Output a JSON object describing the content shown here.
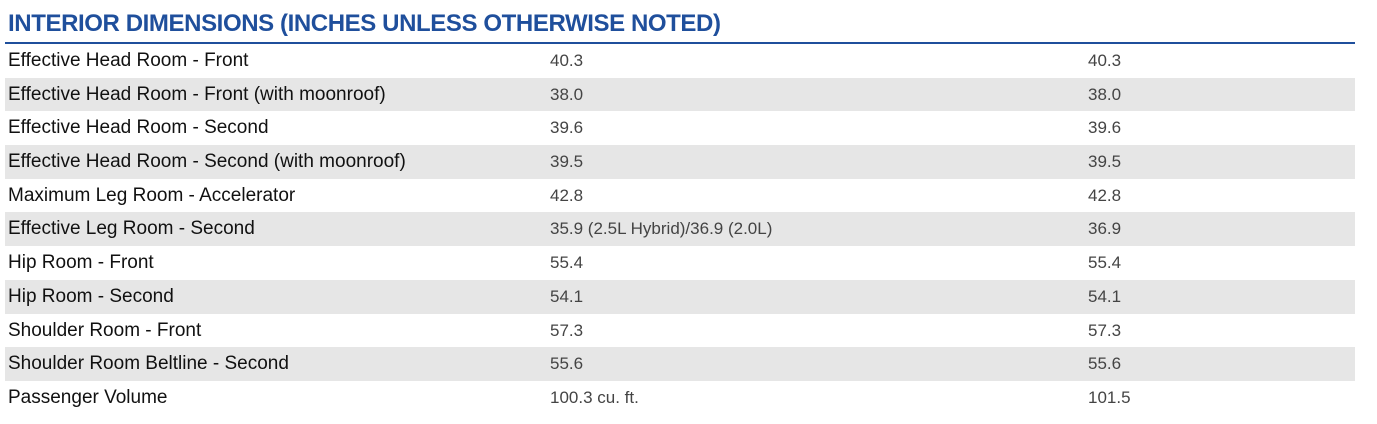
{
  "header": {
    "title": "INTERIOR DIMENSIONS (INCHES UNLESS OTHERWISE NOTED)"
  },
  "table": {
    "rows": [
      [
        "Effective Head Room - Front",
        "40.3",
        "40.3"
      ],
      [
        "Effective Head Room - Front  (with moonroof)",
        "38.0",
        "38.0"
      ],
      [
        "Effective Head Room - Second",
        "39.6",
        "39.6"
      ],
      [
        "Effective Head Room - Second (with moonroof)",
        "39.5",
        "39.5"
      ],
      [
        "Maximum Leg Room - Accelerator",
        "42.8",
        "42.8"
      ],
      [
        "Effective Leg Room - Second",
        "35.9 (2.5L Hybrid)/36.9 (2.0L)",
        "36.9"
      ],
      [
        "Hip Room - Front",
        "55.4",
        "55.4"
      ],
      [
        "Hip Room - Second",
        "54.1",
        "54.1"
      ],
      [
        "Shoulder Room - Front",
        "57.3",
        "57.3"
      ],
      [
        "Shoulder Room Beltline - Second",
        "55.6",
        "55.6"
      ],
      [
        "Passenger Volume",
        "100.3 cu. ft.",
        "101.5"
      ]
    ]
  }
}
